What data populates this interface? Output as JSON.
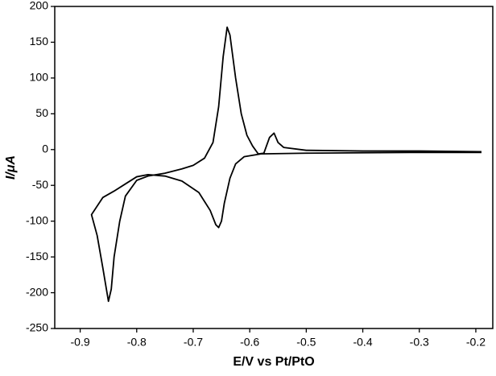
{
  "chart_data": {
    "type": "line",
    "x_label": "E/V vs  Pt/PtO",
    "y_label": "I/μA",
    "x": [
      -0.19,
      -0.3,
      -0.4,
      -0.5,
      -0.58,
      -0.61,
      -0.625,
      -0.635,
      -0.645,
      -0.65,
      -0.655,
      -0.66,
      -0.67,
      -0.69,
      -0.72,
      -0.75,
      -0.78,
      -0.8,
      -0.82,
      -0.84,
      -0.86,
      -0.88,
      -0.87,
      -0.86,
      -0.85,
      -0.845,
      -0.84,
      -0.83,
      -0.82,
      -0.8,
      -0.78,
      -0.75,
      -0.72,
      -0.7,
      -0.68,
      -0.665,
      -0.655,
      -0.647,
      -0.64,
      -0.635,
      -0.625,
      -0.615,
      -0.605,
      -0.595,
      -0.585,
      -0.575,
      -0.565,
      -0.557,
      -0.55,
      -0.54,
      -0.5,
      -0.4,
      -0.3,
      -0.19
    ],
    "series": [
      {
        "color": "#000000",
        "values": [
          -4,
          -4,
          -4.5,
          -5,
          -6,
          -10,
          -20,
          -40,
          -75,
          -100,
          -109,
          -105,
          -85,
          -60,
          -44,
          -37,
          -35,
          -38,
          -48,
          -58,
          -67,
          -91,
          -120,
          -165,
          -212,
          -195,
          -150,
          -100,
          -65,
          -43,
          -37,
          -33,
          -27,
          -22,
          -12,
          10,
          60,
          130,
          171,
          160,
          100,
          50,
          20,
          5,
          -6,
          -5,
          17,
          23,
          10,
          3,
          -1,
          -2,
          -2,
          -3
        ]
      }
    ],
    "xlim": [
      -0.945,
      -0.17
    ],
    "ylim": [
      -250,
      200
    ],
    "xticks": [
      -0.9,
      -0.8,
      -0.7,
      -0.6,
      -0.5,
      -0.4,
      -0.3,
      -0.2
    ],
    "yticks": [
      -250,
      -200,
      -150,
      -100,
      -50,
      0,
      50,
      100,
      150,
      200
    ]
  }
}
